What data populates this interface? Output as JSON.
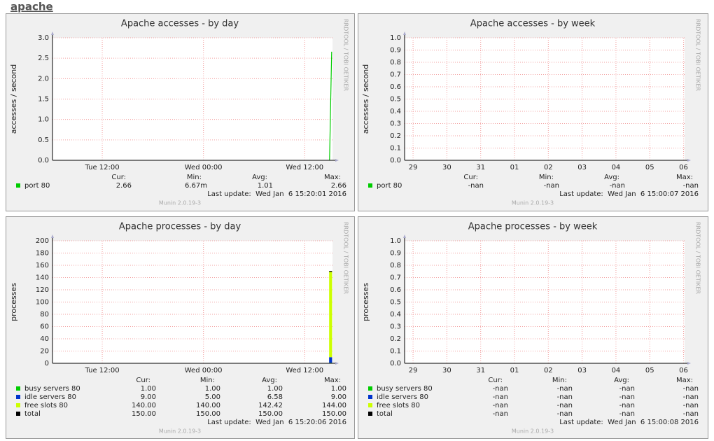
{
  "page_title": "apache",
  "chart_data": [
    {
      "type": "line",
      "title": "Apache accesses - by day",
      "ylabel": "accesses / second",
      "side_text": "RRDTOOL / TOBI OETIKER",
      "footer": "Munin 2.0.19-3",
      "xlim": [
        6.1,
        39.3
      ],
      "xticks": [
        {
          "value": 12,
          "label": "Tue 12:00"
        },
        {
          "value": 24,
          "label": "Wed 00:00"
        },
        {
          "value": 36,
          "label": "Wed 12:00"
        }
      ],
      "ylim": [
        0,
        3
      ],
      "yticks": [
        {
          "value": 0,
          "label": "0.0"
        },
        {
          "value": 0.5,
          "label": "0.5"
        },
        {
          "value": 1,
          "label": "1.0"
        },
        {
          "value": 1.5,
          "label": "1.5"
        },
        {
          "value": 2,
          "label": "2.0"
        },
        {
          "value": 2.5,
          "label": "2.5"
        },
        {
          "value": 3,
          "label": "3.0"
        }
      ],
      "grid": true,
      "stat_headers": [
        "Cur:",
        "Min:",
        "Avg:",
        "Max:"
      ],
      "last_update": "Last update:  Wed Jan  6 15:20:01 2016",
      "series": [
        {
          "name": "port 80",
          "color": "#00cc00",
          "x": [
            38.95,
            39.2
          ],
          "values": [
            0,
            2.66
          ],
          "stats": [
            "2.66",
            "6.67m",
            "1.01",
            "2.66"
          ]
        }
      ]
    },
    {
      "type": "line",
      "title": "Apache accesses - by week",
      "ylabel": "accesses / second",
      "side_text": "RRDTOOL / TOBI OETIKER",
      "footer": "Munin 2.0.19-3",
      "xlim": [
        0,
        8.28
      ],
      "xticks": [
        {
          "value": 0.25,
          "label": "29"
        },
        {
          "value": 1.25,
          "label": "30"
        },
        {
          "value": 2.25,
          "label": "31"
        },
        {
          "value": 3.25,
          "label": "01"
        },
        {
          "value": 4.25,
          "label": "02"
        },
        {
          "value": 5.25,
          "label": "03"
        },
        {
          "value": 6.25,
          "label": "04"
        },
        {
          "value": 7.25,
          "label": "05"
        },
        {
          "value": 8.25,
          "label": "06"
        }
      ],
      "ylim": [
        0,
        1
      ],
      "yticks": [
        {
          "value": 0,
          "label": "0.0"
        },
        {
          "value": 0.1,
          "label": "0.1"
        },
        {
          "value": 0.2,
          "label": "0.2"
        },
        {
          "value": 0.3,
          "label": "0.3"
        },
        {
          "value": 0.4,
          "label": "0.4"
        },
        {
          "value": 0.5,
          "label": "0.5"
        },
        {
          "value": 0.6,
          "label": "0.6"
        },
        {
          "value": 0.7,
          "label": "0.7"
        },
        {
          "value": 0.8,
          "label": "0.8"
        },
        {
          "value": 0.9,
          "label": "0.9"
        },
        {
          "value": 1,
          "label": "1.0"
        }
      ],
      "grid": true,
      "stat_headers": [
        "Cur:",
        "Min:",
        "Avg:",
        "Max:"
      ],
      "last_update": "Last update:  Wed Jan  6 15:00:07 2016",
      "series": [
        {
          "name": "port 80",
          "color": "#00cc00",
          "x": [],
          "values": [],
          "stats": [
            "-nan",
            "-nan",
            "-nan",
            "-nan"
          ]
        }
      ]
    },
    {
      "type": "stacked_area",
      "title": "Apache processes - by day",
      "ylabel": "processes",
      "side_text": "RRDTOOL / TOBI OETIKER",
      "footer": "Munin 2.0.19-3",
      "xlim": [
        6.1,
        39.3
      ],
      "xticks": [
        {
          "value": 12,
          "label": "Tue 12:00"
        },
        {
          "value": 24,
          "label": "Wed 00:00"
        },
        {
          "value": 36,
          "label": "Wed 12:00"
        }
      ],
      "ylim": [
        0,
        200
      ],
      "yticks": [
        0,
        20,
        40,
        60,
        80,
        100,
        120,
        140,
        160,
        180,
        200
      ],
      "grid": true,
      "stat_headers": [
        "Cur:",
        "Min:",
        "Avg:",
        "Max:"
      ],
      "last_update": "Last update:  Wed Jan  6 15:20:06 2016",
      "series": [
        {
          "name": "busy servers 80",
          "color": "#00cc00",
          "style": "area",
          "x": [
            38.9,
            39.25
          ],
          "values": [
            1,
            1
          ],
          "stats": [
            "1.00",
            "1.00",
            "1.00",
            "1.00"
          ]
        },
        {
          "name": "idle servers 80",
          "color": "#0033cc",
          "style": "area",
          "x": [
            38.9,
            39.25
          ],
          "values": [
            9,
            9
          ],
          "stats": [
            "9.00",
            "5.00",
            "6.58",
            "9.00"
          ]
        },
        {
          "name": "free slots 80",
          "color": "#ccff00",
          "style": "area",
          "x": [
            38.9,
            39.25
          ],
          "values": [
            140,
            140
          ],
          "stats": [
            "140.00",
            "140.00",
            "142.42",
            "144.00"
          ]
        },
        {
          "name": "total",
          "color": "#000000",
          "style": "line",
          "x": [
            38.9,
            39.25
          ],
          "values": [
            150,
            150
          ],
          "stats": [
            "150.00",
            "150.00",
            "150.00",
            "150.00"
          ]
        }
      ]
    },
    {
      "type": "stacked_area",
      "title": "Apache processes - by week",
      "ylabel": "processes",
      "side_text": "RRDTOOL / TOBI OETIKER",
      "footer": "Munin 2.0.19-3",
      "xlim": [
        0,
        8.28
      ],
      "xticks": [
        {
          "value": 0.25,
          "label": "29"
        },
        {
          "value": 1.25,
          "label": "30"
        },
        {
          "value": 2.25,
          "label": "31"
        },
        {
          "value": 3.25,
          "label": "01"
        },
        {
          "value": 4.25,
          "label": "02"
        },
        {
          "value": 5.25,
          "label": "03"
        },
        {
          "value": 6.25,
          "label": "04"
        },
        {
          "value": 7.25,
          "label": "05"
        },
        {
          "value": 8.25,
          "label": "06"
        }
      ],
      "ylim": [
        0,
        1
      ],
      "yticks": [
        {
          "value": 0,
          "label": "0.0"
        },
        {
          "value": 0.1,
          "label": "0.1"
        },
        {
          "value": 0.2,
          "label": "0.2"
        },
        {
          "value": 0.3,
          "label": "0.3"
        },
        {
          "value": 0.4,
          "label": "0.4"
        },
        {
          "value": 0.5,
          "label": "0.5"
        },
        {
          "value": 0.6,
          "label": "0.6"
        },
        {
          "value": 0.7,
          "label": "0.7"
        },
        {
          "value": 0.8,
          "label": "0.8"
        },
        {
          "value": 0.9,
          "label": "0.9"
        },
        {
          "value": 1,
          "label": "1.0"
        }
      ],
      "grid": true,
      "stat_headers": [
        "Cur:",
        "Min:",
        "Avg:",
        "Max:"
      ],
      "last_update": "Last update:  Wed Jan  6 15:00:08 2016",
      "series": [
        {
          "name": "busy servers 80",
          "color": "#00cc00",
          "style": "area",
          "x": [],
          "values": [],
          "stats": [
            "-nan",
            "-nan",
            "-nan",
            "-nan"
          ]
        },
        {
          "name": "idle servers 80",
          "color": "#0033cc",
          "style": "area",
          "x": [],
          "values": [],
          "stats": [
            "-nan",
            "-nan",
            "-nan",
            "-nan"
          ]
        },
        {
          "name": "free slots 80",
          "color": "#ccff00",
          "style": "area",
          "x": [],
          "values": [],
          "stats": [
            "-nan",
            "-nan",
            "-nan",
            "-nan"
          ]
        },
        {
          "name": "total",
          "color": "#000000",
          "style": "line",
          "x": [],
          "values": [],
          "stats": [
            "-nan",
            "-nan",
            "-nan",
            "-nan"
          ]
        }
      ]
    }
  ]
}
